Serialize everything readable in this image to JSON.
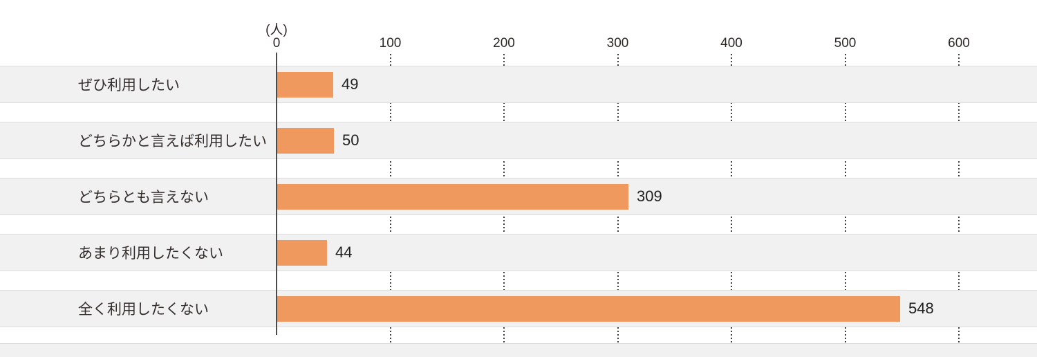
{
  "chart_data": {
    "type": "bar",
    "orientation": "horizontal",
    "title": "",
    "unit_label": "(人)",
    "categories": [
      "ぜひ利用したい",
      "どちらかと言えば利用したい",
      "どちらとも言えない",
      "あまり利用したくない",
      "全く利用したくない"
    ],
    "values": [
      49,
      50,
      309,
      44,
      548
    ],
    "value_labels": [
      "49",
      "50",
      "309",
      "44",
      "548"
    ],
    "x_ticks": [
      0,
      100,
      200,
      300,
      400,
      500,
      600
    ],
    "xlim": [
      0,
      600
    ],
    "grid": "dotted-vertical-between-rows",
    "legend": "none",
    "colors": {
      "bar": "#F0995E",
      "band": "#F1F1F1",
      "band_border": "#DCDCDC",
      "axis": "#4A4A4A",
      "grid_dots": "#3F3F3F",
      "text": "#2B2724",
      "background": "#FFFFFF"
    }
  }
}
